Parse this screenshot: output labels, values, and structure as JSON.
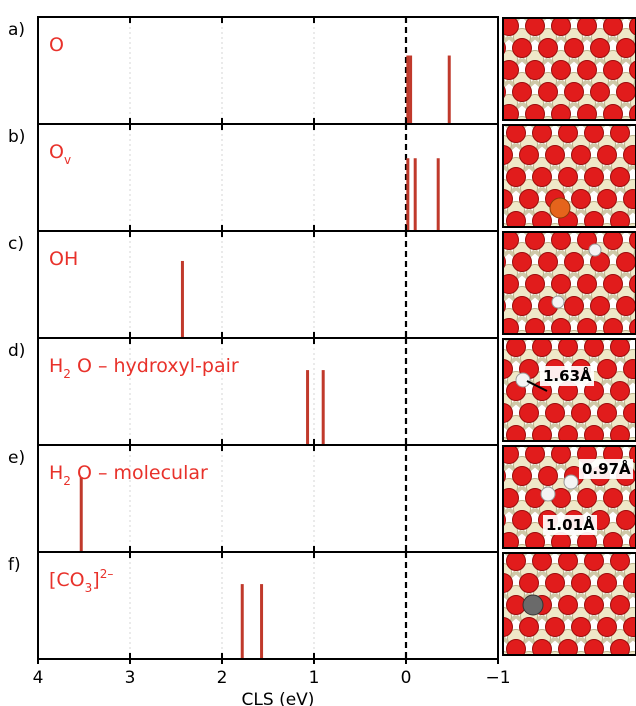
{
  "chart_data": {
    "type": "bar",
    "xlabel": "CLS (eV)",
    "xlim": [
      4,
      -1
    ],
    "x_ticks": [
      4,
      3,
      2,
      1,
      0,
      -1
    ],
    "x_tick_labels": [
      "4",
      "3",
      "2",
      "1",
      "0",
      "−1"
    ],
    "reference_line": 0,
    "grid": "vertical dotted",
    "bar_color": "#c0392b",
    "label_color": "#e8312a",
    "panels": [
      {
        "tag": "a)",
        "name_main": "O",
        "name_sub": "",
        "name_rest": "",
        "name_sup": "",
        "bars": [
          {
            "x": -0.02,
            "h": 0.64
          },
          {
            "x": -0.05,
            "h": 0.64
          },
          {
            "x": -0.47,
            "h": 0.64
          }
        ],
        "inset": {
          "annotations": []
        }
      },
      {
        "tag": "b)",
        "name_main": "O",
        "name_sub": "v",
        "name_rest": "",
        "name_sup": "",
        "bars": [
          {
            "x": -0.02,
            "h": 0.68
          },
          {
            "x": -0.1,
            "h": 0.68
          },
          {
            "x": -0.35,
            "h": 0.68
          }
        ],
        "inset": {
          "annotations": []
        }
      },
      {
        "tag": "c)",
        "name_main": "OH",
        "name_sub": "",
        "name_rest": "",
        "name_sup": "",
        "bars": [
          {
            "x": 2.43,
            "h": 0.72
          }
        ],
        "inset": {
          "annotations": []
        }
      },
      {
        "tag": "d)",
        "name_main": "H",
        "name_sub": "2",
        "name_rest": "O – hydroxyl-pair",
        "name_sup": "",
        "bars": [
          {
            "x": 1.07,
            "h": 0.7
          },
          {
            "x": 0.9,
            "h": 0.7
          }
        ],
        "inset": {
          "annotations": [
            "1.63Å"
          ]
        }
      },
      {
        "tag": "e)",
        "name_main": "H",
        "name_sub": "2",
        "name_rest": "O – molecular",
        "name_sup": "",
        "bars": [
          {
            "x": 3.53,
            "h": 0.7
          }
        ],
        "inset": {
          "annotations": [
            "0.97Å",
            "1.01Å"
          ]
        }
      },
      {
        "tag": "f)",
        "name_main": "[CO",
        "name_sub": "3",
        "name_rest": "]",
        "name_sup": "2–",
        "bars": [
          {
            "x": 1.78,
            "h": 0.7
          },
          {
            "x": 1.57,
            "h": 0.7
          }
        ],
        "inset": {
          "annotations": []
        }
      }
    ]
  }
}
